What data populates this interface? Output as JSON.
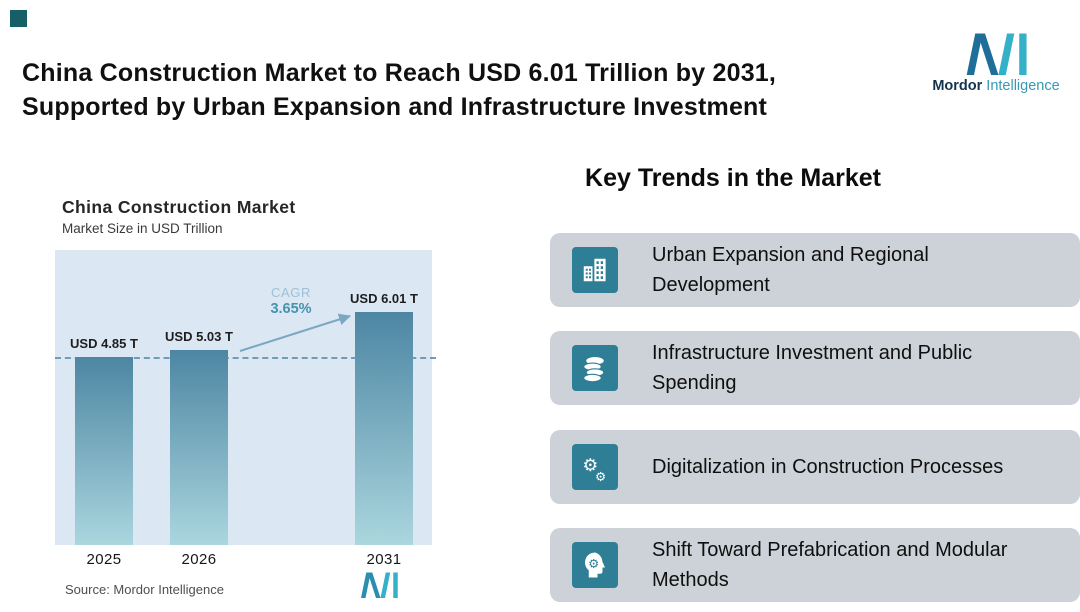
{
  "header": {
    "title_line1": "China Construction Market to Reach USD 6.01 Trillion by 2031,",
    "title_line2": "Supported by Urban Expansion and Infrastructure Investment",
    "brand": {
      "name_bold": "Mordor",
      "name_light": "Intelligence"
    }
  },
  "chart": {
    "title": "China Construction Market",
    "subtitle": "Market Size in USD Trillion",
    "cagr": {
      "label": "CAGR",
      "value": "3.65%"
    },
    "source": "Source: Mordor Intelligence",
    "bars": [
      {
        "year": "2025",
        "label": "USD 4.85 T",
        "value": 4.85
      },
      {
        "year": "2026",
        "label": "USD 5.03 T",
        "value": 5.03
      },
      {
        "year": "2031",
        "label": "USD 6.01 T",
        "value": 6.01
      }
    ]
  },
  "chart_data": {
    "type": "bar",
    "title": "China Construction Market",
    "subtitle": "Market Size in USD Trillion",
    "categories": [
      "2025",
      "2026",
      "2031"
    ],
    "values": [
      4.85,
      5.03,
      6.01
    ],
    "unit": "USD Trillion",
    "ylim": [
      0,
      7.6
    ],
    "grid": false,
    "legend": false,
    "reference_line": 4.85,
    "annotations": [
      {
        "text": "CAGR 3.65%",
        "type": "growth-arrow",
        "from": "2026",
        "to": "2031"
      },
      {
        "text": "USD 4.85 T",
        "bar": "2025"
      },
      {
        "text": "USD 5.03 T",
        "bar": "2026"
      },
      {
        "text": "USD 6.01 T",
        "bar": "2031"
      }
    ]
  },
  "trends": {
    "heading": "Key Trends in the Market",
    "items": [
      {
        "icon": "buildings-icon",
        "text": "Urban Expansion and Regional Development"
      },
      {
        "icon": "coins-icon",
        "text": "Infrastructure Investment and Public Spending"
      },
      {
        "icon": "gears-icon",
        "text": "Digitalization in Construction Processes"
      },
      {
        "icon": "head-gear-icon",
        "text": "Shift Toward Prefabrication and Modular Methods"
      }
    ]
  },
  "colors": {
    "teal": "#2e7e95",
    "navy": "#14344e",
    "corner_accent": "#175f66",
    "bar_top": "#4d86a3",
    "bar_bottom": "#aad6de",
    "plot_bg": "#dbe7f2",
    "box_bg": "#ccd2d8",
    "dashed_line": "#6f9cb8",
    "cagr_label": "#9fc0d8",
    "cagr_value": "#4792ac",
    "logo_dark": "#1f6e99",
    "logo_teal": "#35b0c9"
  }
}
